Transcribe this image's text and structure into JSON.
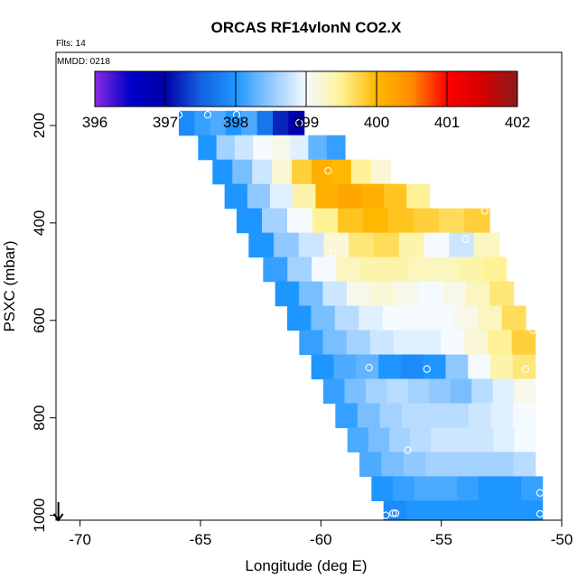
{
  "chart_data": {
    "type": "heatmap",
    "title": "ORCAS RF14vlonN CO2.X",
    "annotations": {
      "flights": "Flts: 14",
      "date": "MMDD: 0218"
    },
    "xlabel": "Longitude (deg E)",
    "ylabel": "PSXC (mbar)",
    "xlim": [
      -71,
      -50
    ],
    "ylim": [
      1010,
      50
    ],
    "y_reversed": true,
    "x_ticks": [
      -70,
      -65,
      -60,
      -55,
      -50
    ],
    "y_ticks": [
      200,
      400,
      600,
      800,
      1000
    ],
    "colorbar": {
      "range": [
        396,
        402
      ],
      "ticks": [
        396,
        397,
        398,
        399,
        400,
        401,
        402
      ],
      "stops": [
        {
          "v": 396.0,
          "color": "#8a2be2"
        },
        {
          "v": 396.5,
          "color": "#0000c8"
        },
        {
          "v": 397.0,
          "color": "#0000a8"
        },
        {
          "v": 397.5,
          "color": "#1460e0"
        },
        {
          "v": 398.0,
          "color": "#1e96ff"
        },
        {
          "v": 398.5,
          "color": "#90c8ff"
        },
        {
          "v": 399.0,
          "color": "#f5faff"
        },
        {
          "v": 399.5,
          "color": "#fff296"
        },
        {
          "v": 400.0,
          "color": "#ffb800"
        },
        {
          "v": 400.5,
          "color": "#ff8a00"
        },
        {
          "v": 401.0,
          "color": "#ff0000"
        },
        {
          "v": 401.5,
          "color": "#d40000"
        },
        {
          "v": 402.0,
          "color": "#8c1a1a"
        }
      ]
    },
    "bands": [
      {
        "p0": 170,
        "p1": 220,
        "lon_start": -65.9,
        "lon_end": -60.7,
        "segments": [
          397.9,
          398.1,
          398.2,
          398.0,
          398.2,
          397.7,
          397.2,
          396.9
        ]
      },
      {
        "p0": 220,
        "p1": 270,
        "lon_start": -65.1,
        "lon_end": -59.0,
        "segments": [
          398.0,
          398.6,
          398.8,
          399.0,
          399.1,
          398.9,
          398.3,
          398.1
        ]
      },
      {
        "p0": 270,
        "p1": 320,
        "lon_start": -64.5,
        "lon_end": -57.1,
        "segments": [
          398.0,
          398.4,
          398.8,
          399.2,
          399.8,
          400.1,
          400.0,
          399.5,
          399.2
        ]
      },
      {
        "p0": 320,
        "p1": 370,
        "lon_start": -64.0,
        "lon_end": -55.5,
        "segments": [
          398.0,
          398.5,
          398.9,
          399.4,
          400.1,
          400.2,
          400.1,
          399.9,
          399.5
        ]
      },
      {
        "p0": 370,
        "p1": 420,
        "lon_start": -63.5,
        "lon_end": -53.0,
        "segments": [
          398.0,
          398.6,
          399.0,
          399.5,
          399.9,
          400.0,
          399.9,
          399.8,
          399.7,
          399.8
        ]
      },
      {
        "p0": 420,
        "p1": 470,
        "lon_start": -63.0,
        "lon_end": -52.6,
        "segments": [
          398.0,
          398.5,
          398.8,
          399.2,
          399.6,
          399.7,
          399.4,
          399.0,
          398.8,
          399.3
        ]
      },
      {
        "p0": 470,
        "p1": 520,
        "lon_start": -62.4,
        "lon_end": -52.3,
        "segments": [
          398.1,
          398.6,
          399.0,
          399.3,
          399.4,
          399.4,
          399.3,
          399.3,
          399.4,
          399.5
        ]
      },
      {
        "p0": 520,
        "p1": 570,
        "lon_start": -61.9,
        "lon_end": -52.0,
        "segments": [
          398.0,
          398.4,
          398.8,
          399.1,
          399.2,
          399.1,
          399.0,
          399.1,
          399.3,
          399.6
        ]
      },
      {
        "p0": 570,
        "p1": 620,
        "lon_start": -61.4,
        "lon_end": -51.5,
        "segments": [
          398.0,
          398.4,
          398.7,
          398.9,
          399.0,
          399.0,
          399.0,
          399.1,
          399.3,
          399.7
        ]
      },
      {
        "p0": 620,
        "p1": 670,
        "lon_start": -60.9,
        "lon_end": -51.1,
        "segments": [
          398.1,
          398.4,
          398.6,
          398.8,
          398.9,
          398.9,
          399.0,
          399.2,
          399.5,
          399.8
        ]
      },
      {
        "p0": 670,
        "p1": 720,
        "lon_start": -60.4,
        "lon_end": -51.1,
        "segments": [
          398.0,
          398.2,
          398.3,
          398.0,
          397.9,
          398.0,
          398.5,
          399.0,
          399.4,
          399.6
        ]
      },
      {
        "p0": 720,
        "p1": 770,
        "lon_start": -59.9,
        "lon_end": -51.1,
        "segments": [
          398.1,
          398.4,
          398.6,
          398.7,
          398.6,
          398.5,
          398.4,
          398.7,
          398.9,
          399.1
        ]
      },
      {
        "p0": 770,
        "p1": 820,
        "lon_start": -59.4,
        "lon_end": -51.1,
        "segments": [
          398.1,
          398.4,
          398.6,
          398.7,
          398.7,
          398.7,
          398.8,
          398.9,
          399.0
        ]
      },
      {
        "p0": 820,
        "p1": 870,
        "lon_start": -58.9,
        "lon_end": -51.1,
        "segments": [
          398.2,
          398.4,
          398.6,
          398.7,
          398.8,
          398.8,
          398.8,
          398.9,
          399.0
        ]
      },
      {
        "p0": 870,
        "p1": 920,
        "lon_start": -58.4,
        "lon_end": -51.1,
        "segments": [
          398.2,
          398.4,
          398.5,
          398.6,
          398.6,
          398.6,
          398.6,
          398.7
        ]
      },
      {
        "p0": 920,
        "p1": 970,
        "lon_start": -57.9,
        "lon_end": -50.8,
        "segments": [
          398.0,
          398.1,
          398.2,
          398.2,
          398.1,
          398.0,
          398.0,
          398.1
        ]
      },
      {
        "p0": 970,
        "p1": 1010,
        "lon_start": -57.4,
        "lon_end": -50.8,
        "segments": [
          397.9,
          398.0,
          398.0,
          398.0,
          398.0,
          398.0,
          398.0
        ]
      }
    ],
    "points": [
      {
        "lon": -65.9,
        "p": 178
      },
      {
        "lon": -64.7,
        "p": 178
      },
      {
        "lon": -63.5,
        "p": 178
      },
      {
        "lon": -60.9,
        "p": 195
      },
      {
        "lon": -59.7,
        "p": 293
      },
      {
        "lon": -53.2,
        "p": 375
      },
      {
        "lon": -54.0,
        "p": 433
      },
      {
        "lon": -59.5,
        "p": 462
      },
      {
        "lon": -51.2,
        "p": 620
      },
      {
        "lon": -58.0,
        "p": 697
      },
      {
        "lon": -55.6,
        "p": 700
      },
      {
        "lon": -51.5,
        "p": 700
      },
      {
        "lon": -56.4,
        "p": 866
      },
      {
        "lon": -50.9,
        "p": 954
      },
      {
        "lon": -57.3,
        "p": 1000
      },
      {
        "lon": -57.0,
        "p": 996
      },
      {
        "lon": -56.9,
        "p": 996
      },
      {
        "lon": -50.9,
        "p": 997
      }
    ],
    "arrow": {
      "lon": -70.9,
      "direction": "down"
    }
  }
}
